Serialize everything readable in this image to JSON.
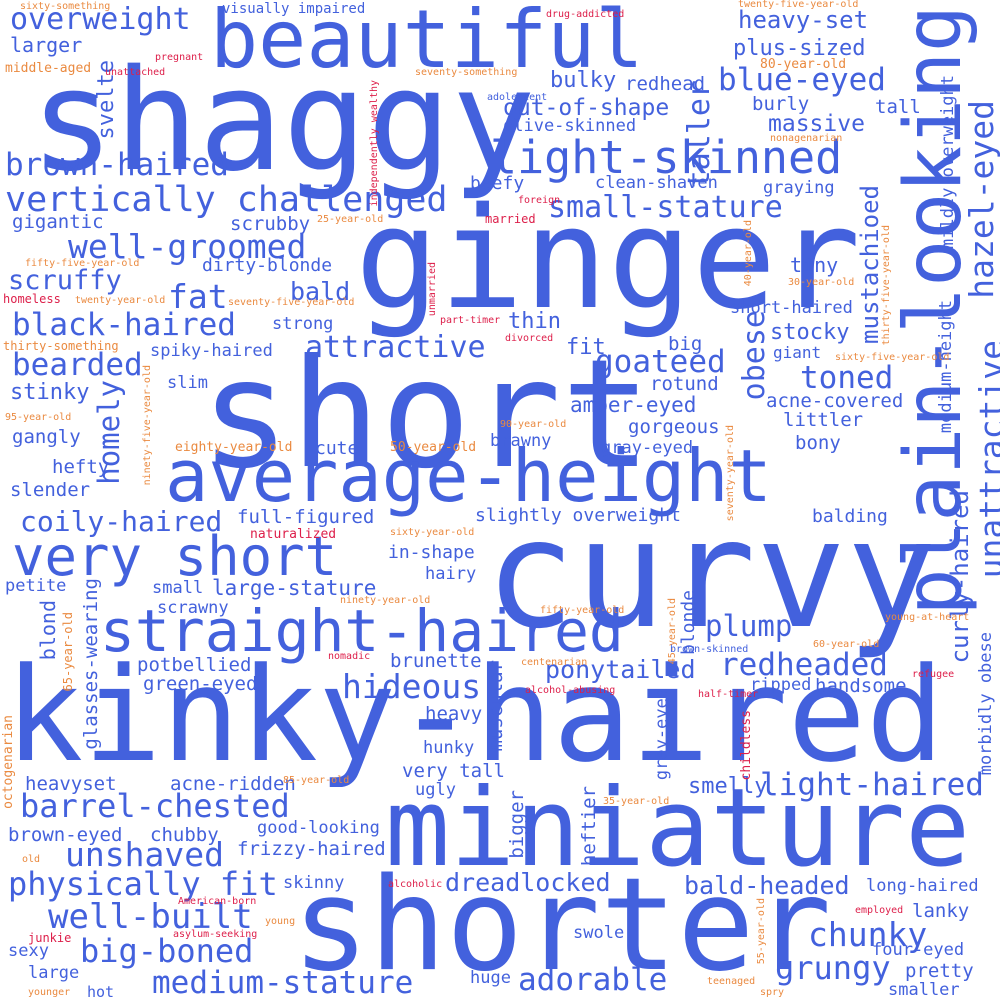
{
  "colors": {
    "blue": "#4361dd",
    "orange": "#ea8a40",
    "red": "#dd1f4a",
    "background": "#ffffff"
  },
  "words": [
    {
      "id": "shaggy",
      "text": "shaggy"
    },
    {
      "id": "ginger",
      "text": "ginger"
    },
    {
      "id": "short",
      "text": "short"
    },
    {
      "id": "curvy",
      "text": "curvy"
    },
    {
      "id": "kinky-haired",
      "text": "kinky-haired"
    },
    {
      "id": "miniature",
      "text": "miniature"
    },
    {
      "id": "shorter",
      "text": "shorter"
    },
    {
      "id": "beautiful",
      "text": "beautiful"
    },
    {
      "id": "plain-looking",
      "text": "plain-looking"
    },
    {
      "id": "average-height",
      "text": "average-height"
    },
    {
      "id": "very-short",
      "text": "very short"
    },
    {
      "id": "straight-haired",
      "text": "straight-haired"
    },
    {
      "id": "light-skinned",
      "text": "light-skinned"
    },
    {
      "id": "vertically-challenged",
      "text": "vertically challenged"
    },
    {
      "id": "well-groomed",
      "text": "well-groomed"
    },
    {
      "id": "brown-haired",
      "text": "brown-haired"
    },
    {
      "id": "overweight",
      "text": "overweight"
    },
    {
      "id": "blue-eyed",
      "text": "blue-eyed"
    },
    {
      "id": "small-stature",
      "text": "small-stature"
    },
    {
      "id": "hazel-eyed",
      "text": "hazel-eyed"
    },
    {
      "id": "unattractive",
      "text": "unattractive"
    },
    {
      "id": "hideous",
      "text": "hideous"
    },
    {
      "id": "redheaded",
      "text": "redheaded"
    },
    {
      "id": "barrel-chested",
      "text": "barrel-chested"
    },
    {
      "id": "light-haired",
      "text": "light-haired"
    },
    {
      "id": "physically-fit",
      "text": "physically fit"
    },
    {
      "id": "well-built",
      "text": "well-built"
    },
    {
      "id": "unshaved",
      "text": "unshaved"
    },
    {
      "id": "big-boned",
      "text": "big-boned"
    },
    {
      "id": "medium-stature",
      "text": "medium-stature"
    },
    {
      "id": "grungy",
      "text": "grungy"
    },
    {
      "id": "chunky",
      "text": "chunky"
    },
    {
      "id": "adorable",
      "text": "adorable"
    },
    {
      "id": "attractive",
      "text": "attractive"
    },
    {
      "id": "black-haired",
      "text": "black-haired"
    },
    {
      "id": "bearded",
      "text": "bearded"
    },
    {
      "id": "fat",
      "text": "fat"
    },
    {
      "id": "toned",
      "text": "toned"
    },
    {
      "id": "goateed",
      "text": "goateed"
    },
    {
      "id": "obese",
      "text": "obese"
    },
    {
      "id": "taller",
      "text": "taller"
    },
    {
      "id": "homely",
      "text": "homely"
    },
    {
      "id": "coily-haired",
      "text": "coily-haired"
    },
    {
      "id": "plump",
      "text": "plump"
    },
    {
      "id": "ponytailed",
      "text": "ponytailed"
    },
    {
      "id": "dreadlocked",
      "text": "dreadlocked"
    },
    {
      "id": "bald-headed",
      "text": "bald-headed"
    },
    {
      "id": "mustachioed",
      "text": "mustachioed"
    },
    {
      "id": "curly-haired",
      "text": "curly-haired"
    },
    {
      "id": "larger",
      "text": "larger"
    },
    {
      "id": "svelte",
      "text": "svelte"
    },
    {
      "id": "heavy-set",
      "text": "heavy-set"
    },
    {
      "id": "plus-sized",
      "text": "plus-sized"
    },
    {
      "id": "out-of-shape",
      "text": "out-of-shape"
    },
    {
      "id": "bulky",
      "text": "bulky"
    },
    {
      "id": "redhead",
      "text": "redhead"
    },
    {
      "id": "massive",
      "text": "massive"
    },
    {
      "id": "burly",
      "text": "burly"
    },
    {
      "id": "tall",
      "text": "tall"
    },
    {
      "id": "olive-skinned",
      "text": "olive-skinned"
    },
    {
      "id": "beefy",
      "text": "beefy"
    },
    {
      "id": "clean-shaven",
      "text": "clean-shaven"
    },
    {
      "id": "graying",
      "text": "graying"
    },
    {
      "id": "gigantic",
      "text": "gigantic"
    },
    {
      "id": "scrubby",
      "text": "scrubby"
    },
    {
      "id": "dirty-blonde",
      "text": "dirty-blonde"
    },
    {
      "id": "tiny",
      "text": "tiny"
    },
    {
      "id": "scruffy",
      "text": "scruffy"
    },
    {
      "id": "bald",
      "text": "bald"
    },
    {
      "id": "strong",
      "text": "strong"
    },
    {
      "id": "thin",
      "text": "thin"
    },
    {
      "id": "short-haired",
      "text": "short-haired"
    },
    {
      "id": "stocky",
      "text": "stocky"
    },
    {
      "id": "giant",
      "text": "giant"
    },
    {
      "id": "spiky-haired",
      "text": "spiky-haired"
    },
    {
      "id": "fit",
      "text": "fit"
    },
    {
      "id": "big",
      "text": "big"
    },
    {
      "id": "stinky",
      "text": "stinky"
    },
    {
      "id": "slim",
      "text": "slim"
    },
    {
      "id": "rotund",
      "text": "rotund"
    },
    {
      "id": "amber-eyed",
      "text": "amber-eyed"
    },
    {
      "id": "acne-covered",
      "text": "acne-covered"
    },
    {
      "id": "littler",
      "text": "littler"
    },
    {
      "id": "gangly",
      "text": "gangly"
    },
    {
      "id": "gorgeous",
      "text": "gorgeous"
    },
    {
      "id": "bony",
      "text": "bony"
    },
    {
      "id": "hefty",
      "text": "hefty"
    },
    {
      "id": "cute",
      "text": "cute"
    },
    {
      "id": "brawny",
      "text": "brawny"
    },
    {
      "id": "gray-eyed",
      "text": "gray-eyed"
    },
    {
      "id": "slender",
      "text": "slender"
    },
    {
      "id": "full-figured",
      "text": "full-figured"
    },
    {
      "id": "slightly-overweight",
      "text": "slightly overweight"
    },
    {
      "id": "balding",
      "text": "balding"
    },
    {
      "id": "in-shape",
      "text": "in-shape"
    },
    {
      "id": "hairy",
      "text": "hairy"
    },
    {
      "id": "petite",
      "text": "petite"
    },
    {
      "id": "small",
      "text": "small"
    },
    {
      "id": "large-stature",
      "text": "large-stature"
    },
    {
      "id": "scrawny",
      "text": "scrawny"
    },
    {
      "id": "blond",
      "text": "blond"
    },
    {
      "id": "glasses-wearing",
      "text": "glasses-wearing"
    },
    {
      "id": "blonde",
      "text": "blonde"
    },
    {
      "id": "potbellied",
      "text": "potbellied"
    },
    {
      "id": "brunette",
      "text": "brunette"
    },
    {
      "id": "green-eyed",
      "text": "green-eyed"
    },
    {
      "id": "handsome",
      "text": "handsome"
    },
    {
      "id": "ripped",
      "text": "ripped"
    },
    {
      "id": "heavy",
      "text": "heavy"
    },
    {
      "id": "muscular",
      "text": "muscular"
    },
    {
      "id": "hunky",
      "text": "hunky"
    },
    {
      "id": "very-tall",
      "text": "very tall"
    },
    {
      "id": "grey-eyed",
      "text": "grey-eyed"
    },
    {
      "id": "morbidly-obese",
      "text": "morbidly obese"
    },
    {
      "id": "heavyset",
      "text": "heavyset"
    },
    {
      "id": "acne-ridden",
      "text": "acne-ridden"
    },
    {
      "id": "ugly",
      "text": "ugly"
    },
    {
      "id": "smelly",
      "text": "smelly"
    },
    {
      "id": "bigger",
      "text": "bigger"
    },
    {
      "id": "heftier",
      "text": "heftier"
    },
    {
      "id": "brown-eyed",
      "text": "brown-eyed"
    },
    {
      "id": "chubby",
      "text": "chubby"
    },
    {
      "id": "good-looking",
      "text": "good-looking"
    },
    {
      "id": "frizzy-haired",
      "text": "frizzy-haired"
    },
    {
      "id": "skinny",
      "text": "skinny"
    },
    {
      "id": "long-haired",
      "text": "long-haired"
    },
    {
      "id": "lanky",
      "text": "lanky"
    },
    {
      "id": "four-eyed",
      "text": "four-eyed"
    },
    {
      "id": "sexy",
      "text": "sexy"
    },
    {
      "id": "large",
      "text": "large"
    },
    {
      "id": "swole",
      "text": "swole"
    },
    {
      "id": "huge",
      "text": "huge"
    },
    {
      "id": "hot",
      "text": "hot"
    },
    {
      "id": "pretty",
      "text": "pretty"
    },
    {
      "id": "smaller",
      "text": "smaller"
    },
    {
      "id": "mildly-overweight",
      "text": "mildly overweight"
    },
    {
      "id": "medium-height",
      "text": "medium-height"
    },
    {
      "id": "sixty-something",
      "text": "sixty-something"
    },
    {
      "id": "visually-impaired",
      "text": "visually impaired"
    },
    {
      "id": "drug-addicted",
      "text": "drug-addicted"
    },
    {
      "id": "twenty-five-year-old",
      "text": "twenty-five-year-old"
    },
    {
      "id": "pregnant",
      "text": "pregnant"
    },
    {
      "id": "middle-aged",
      "text": "middle-aged"
    },
    {
      "id": "unattached",
      "text": "unattached"
    },
    {
      "id": "seventy-something",
      "text": "seventy-something"
    },
    {
      "id": "80-year-old",
      "text": "80-year-old"
    },
    {
      "id": "adolescent",
      "text": "adolescent"
    },
    {
      "id": "independently-wealthy",
      "text": "independently wealthy"
    },
    {
      "id": "nonagenarian",
      "text": "nonagenarian"
    },
    {
      "id": "foreign",
      "text": "foreign"
    },
    {
      "id": "married",
      "text": "married"
    },
    {
      "id": "25-year-old",
      "text": "25-year-old"
    },
    {
      "id": "40-year-old",
      "text": "40-year-old"
    },
    {
      "id": "30-year-old",
      "text": "30-year-old"
    },
    {
      "id": "fifty-five-year-old",
      "text": "fifty-five-year-old"
    },
    {
      "id": "homeless",
      "text": "homeless"
    },
    {
      "id": "twenty-year-old",
      "text": "twenty-year-old"
    },
    {
      "id": "seventy-five-year-old",
      "text": "seventy-five-year-old"
    },
    {
      "id": "unmarried",
      "text": "unmarried"
    },
    {
      "id": "part-timer",
      "text": "part-timer"
    },
    {
      "id": "divorced",
      "text": "divorced"
    },
    {
      "id": "thirty-something",
      "text": "thirty-something"
    },
    {
      "id": "thirty-five-year-old",
      "text": "thirty-five-year-old"
    },
    {
      "id": "sixty-five-year-old",
      "text": "sixty-five-year-old"
    },
    {
      "id": "ninety-five-year-old",
      "text": "ninety-five-year-old"
    },
    {
      "id": "95-year-old",
      "text": "95-year-old"
    },
    {
      "id": "90-year-old",
      "text": "90-year-old"
    },
    {
      "id": "eighty-year-old",
      "text": "eighty-year-old"
    },
    {
      "id": "50-year-old",
      "text": "50-year-old"
    },
    {
      "id": "seventy-year-old",
      "text": "seventy-year-old"
    },
    {
      "id": "naturalized",
      "text": "naturalized"
    },
    {
      "id": "sixty-year-old",
      "text": "sixty-year-old"
    },
    {
      "id": "ninety-year-old",
      "text": "ninety-year-old"
    },
    {
      "id": "65-year-old",
      "text": "65-year-old"
    },
    {
      "id": "fifty-year-old",
      "text": "fifty-year-old"
    },
    {
      "id": "45-year-old",
      "text": "45-year-old"
    },
    {
      "id": "young-at-heart",
      "text": "young-at-heart"
    },
    {
      "id": "60-year-old",
      "text": "60-year-old"
    },
    {
      "id": "nomadic",
      "text": "nomadic"
    },
    {
      "id": "centenarian",
      "text": "centenarian"
    },
    {
      "id": "brown-skinned",
      "text": "brown-skinned"
    },
    {
      "id": "refugee",
      "text": "refugee"
    },
    {
      "id": "alcohol-abusing",
      "text": "alcohol-abusing"
    },
    {
      "id": "half-timer",
      "text": "half-timer"
    },
    {
      "id": "octogenarian",
      "text": "octogenarian"
    },
    {
      "id": "childless",
      "text": "childless"
    },
    {
      "id": "85-year-old",
      "text": "85-year-old"
    },
    {
      "id": "35-year-old",
      "text": "35-year-old"
    },
    {
      "id": "old",
      "text": "old"
    },
    {
      "id": "alcoholic",
      "text": "alcoholic"
    },
    {
      "id": "american-born",
      "text": "American-born"
    },
    {
      "id": "young",
      "text": "young"
    },
    {
      "id": "employed",
      "text": "employed"
    },
    {
      "id": "junkie",
      "text": "junkie"
    },
    {
      "id": "asylum-seeking",
      "text": "asylum-seeking"
    },
    {
      "id": "55-year-old",
      "text": "55-year-old"
    },
    {
      "id": "younger",
      "text": "younger"
    },
    {
      "id": "teenaged",
      "text": "teenaged"
    },
    {
      "id": "spry",
      "text": "spry"
    }
  ]
}
